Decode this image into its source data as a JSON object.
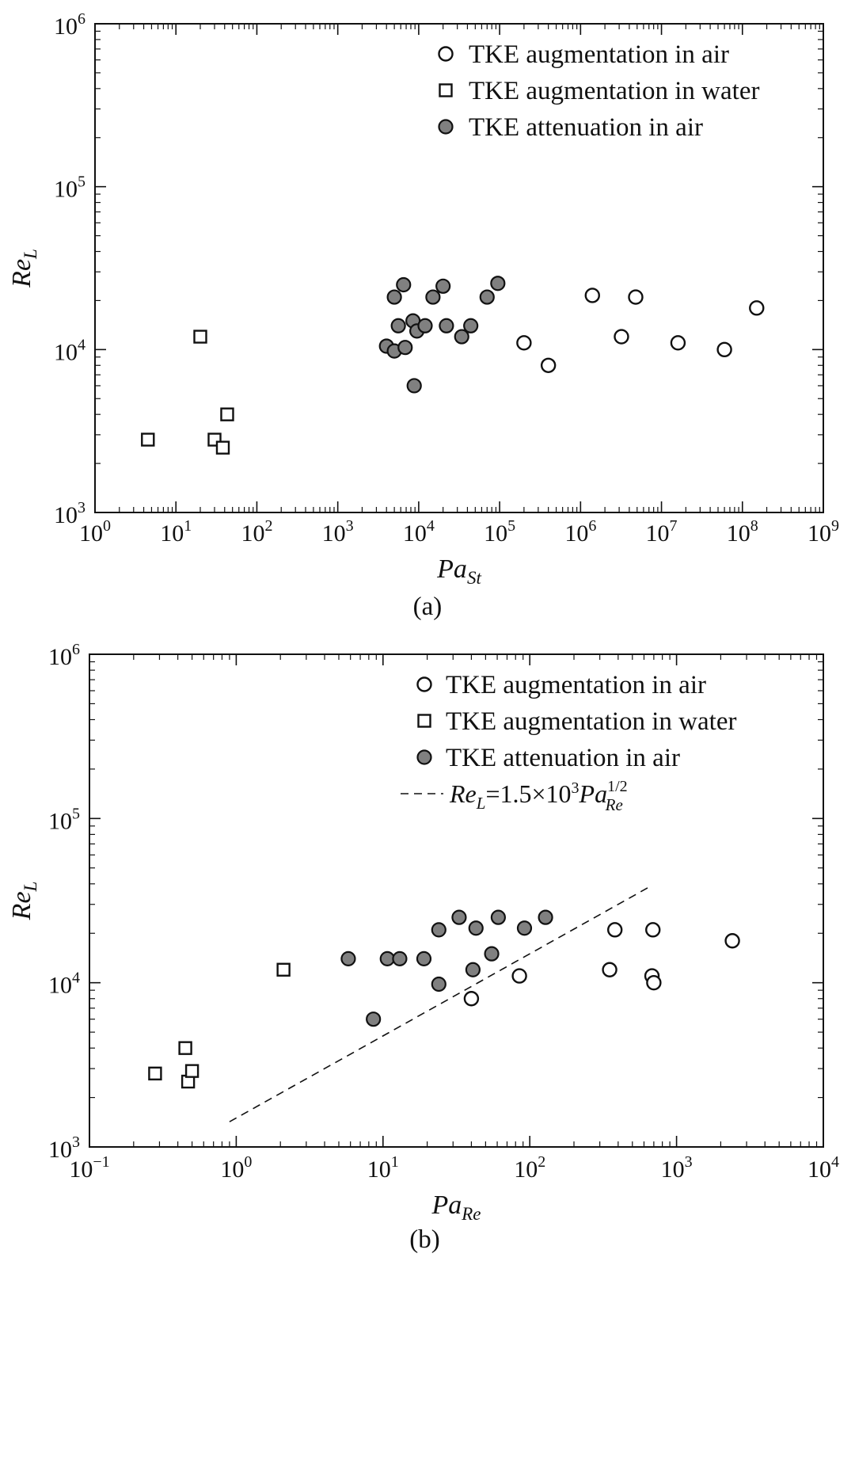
{
  "chart_data": [
    {
      "type": "scatter",
      "panel_label": "(a)",
      "xlabel": {
        "base": "Pa",
        "sub": "St"
      },
      "ylabel": {
        "base": "Re",
        "sub": "L"
      },
      "xscale": "log",
      "yscale": "log",
      "xlim": [
        1,
        1000000000
      ],
      "ylim": [
        1000,
        1000000
      ],
      "x_tick_exponents": [
        0,
        1,
        2,
        3,
        4,
        5,
        6,
        7,
        8,
        9
      ],
      "y_tick_exponents": [
        3,
        4,
        5,
        6
      ],
      "legend_position": "top-right",
      "series": [
        {
          "name": "TKE augmentation in air",
          "marker": "circle-open",
          "points": [
            [
              200000,
              11000
            ],
            [
              400000,
              8000
            ],
            [
              1400000,
              21500
            ],
            [
              3200000,
              12000
            ],
            [
              4800000,
              21000
            ],
            [
              16000000,
              11000
            ],
            [
              60000000,
              10000
            ],
            [
              150000000,
              18000
            ]
          ]
        },
        {
          "name": "TKE augmentation in water",
          "marker": "square-open",
          "points": [
            [
              4.5,
              2800
            ],
            [
              20,
              12000
            ],
            [
              30,
              2800
            ],
            [
              38,
              2500
            ],
            [
              43,
              4000
            ]
          ]
        },
        {
          "name": "TKE attenuation in air",
          "marker": "circle-filled",
          "points": [
            [
              4000,
              10500
            ],
            [
              5000,
              9800
            ],
            [
              5000,
              21000
            ],
            [
              5600,
              14000
            ],
            [
              6500,
              25000
            ],
            [
              6800,
              10300
            ],
            [
              8500,
              15000
            ],
            [
              8800,
              6000
            ],
            [
              9500,
              13000
            ],
            [
              12000,
              14000
            ],
            [
              15000,
              21000
            ],
            [
              20000,
              24500
            ],
            [
              22000,
              14000
            ],
            [
              34000,
              12000
            ],
            [
              44000,
              14000
            ],
            [
              70000,
              21000
            ],
            [
              95000,
              25500
            ]
          ]
        }
      ]
    },
    {
      "type": "scatter",
      "panel_label": "(b)",
      "xlabel": {
        "base": "Pa",
        "sub": "Re"
      },
      "ylabel": {
        "base": "Re",
        "sub": "L"
      },
      "xscale": "log",
      "yscale": "log",
      "xlim": [
        0.1,
        10000
      ],
      "ylim": [
        1000,
        1000000
      ],
      "x_tick_exponents": [
        -1,
        0,
        1,
        2,
        3,
        4
      ],
      "y_tick_exponents": [
        3,
        4,
        5,
        6
      ],
      "legend_position": "top-right",
      "series": [
        {
          "name": "TKE augmentation in air",
          "marker": "circle-open",
          "points": [
            [
              40,
              8000
            ],
            [
              85,
              11000
            ],
            [
              350,
              12000
            ],
            [
              380,
              21000
            ],
            [
              680,
              11000
            ],
            [
              690,
              21000
            ],
            [
              700,
              10000
            ],
            [
              2400,
              18000
            ]
          ]
        },
        {
          "name": "TKE augmentation in water",
          "marker": "square-open",
          "points": [
            [
              0.28,
              2800
            ],
            [
              0.45,
              4000
            ],
            [
              0.47,
              2500
            ],
            [
              0.5,
              2900
            ],
            [
              2.1,
              12000
            ]
          ]
        },
        {
          "name": "TKE attenuation in air",
          "marker": "circle-filled",
          "points": [
            [
              5.8,
              14000
            ],
            [
              8.6,
              6000
            ],
            [
              10.7,
              14000
            ],
            [
              13,
              14000
            ],
            [
              19,
              14000
            ],
            [
              24,
              21000
            ],
            [
              24,
              9800
            ],
            [
              33,
              25000
            ],
            [
              41,
              12000
            ],
            [
              43,
              21500
            ],
            [
              55,
              15000
            ],
            [
              61,
              25000
            ],
            [
              92,
              21500
            ],
            [
              128,
              25000
            ]
          ]
        }
      ],
      "fit_line": {
        "label": {
          "lhs_base": "Re",
          "lhs_sub": "L",
          "mid": "=1.5×10",
          "mid_sup": "3",
          "rhs_base": "Pa",
          "rhs_sup": "1/2",
          "rhs_sub": "Re"
        },
        "style": "dashed",
        "coefficient": 1500,
        "exponent": 0.5,
        "x_range": [
          0.9,
          650
        ]
      }
    }
  ]
}
